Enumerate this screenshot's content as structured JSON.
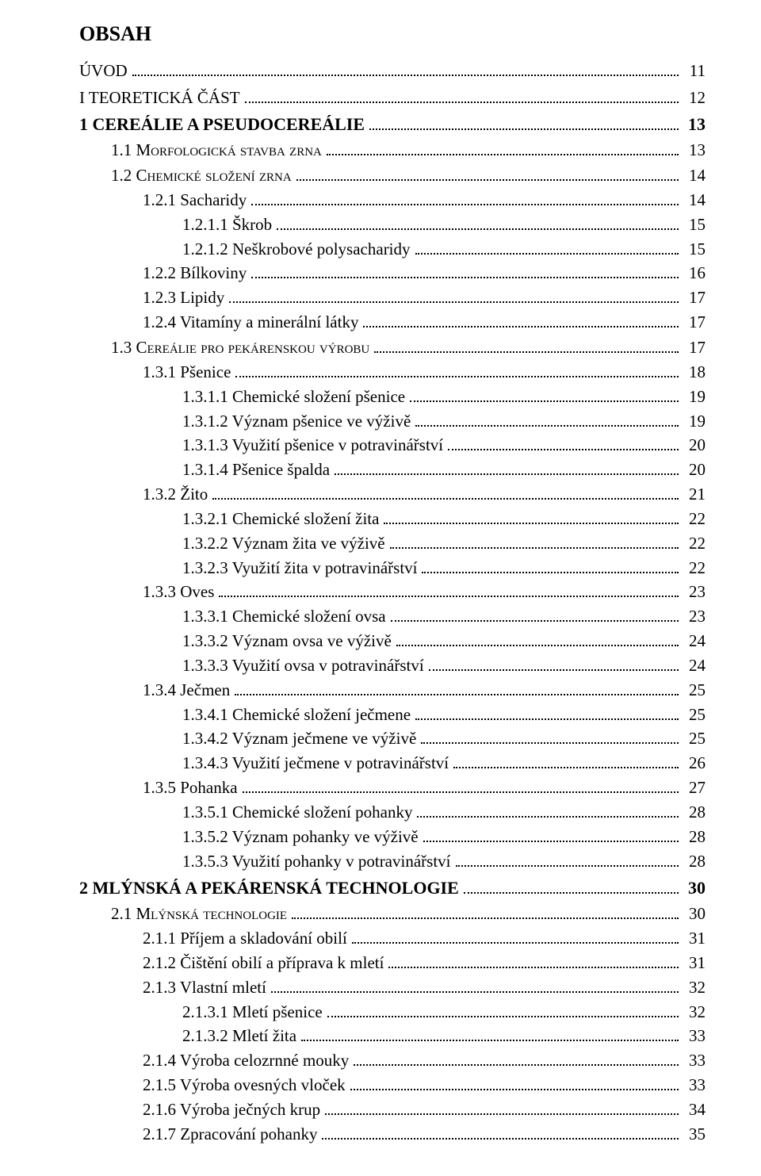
{
  "title": "OBSAH",
  "entries": [
    {
      "cls": "lvl-uvod",
      "label": "ÚVOD",
      "page": "11",
      "bold": false,
      "sc": false
    },
    {
      "cls": "lvl-roman",
      "label": "I   TEORETICKÁ ČÁST",
      "page": "12",
      "bold": false,
      "sc": false
    },
    {
      "cls": "lvl-chapter",
      "label": "1   CEREÁLIE A PSEUDOCEREÁLIE",
      "page": "13",
      "bold": true,
      "sc": false
    },
    {
      "cls": "lvl-sec",
      "label": "1.1   Morfologická stavba zrna",
      "page": "13",
      "bold": false,
      "sc": true
    },
    {
      "cls": "lvl-sec",
      "label": "1.2   Chemické složení zrna",
      "page": "14",
      "bold": false,
      "sc": true
    },
    {
      "cls": "lvl-sub",
      "label": "1.2.1   Sacharidy",
      "page": "14",
      "bold": false,
      "sc": false
    },
    {
      "cls": "lvl-subsub",
      "label": "1.2.1.1   Škrob",
      "page": "15",
      "bold": false,
      "sc": false
    },
    {
      "cls": "lvl-subsub",
      "label": "1.2.1.2   Neškrobové polysacharidy",
      "page": "15",
      "bold": false,
      "sc": false
    },
    {
      "cls": "lvl-sub",
      "label": "1.2.2   Bílkoviny",
      "page": "16",
      "bold": false,
      "sc": false
    },
    {
      "cls": "lvl-sub",
      "label": "1.2.3   Lipidy",
      "page": "17",
      "bold": false,
      "sc": false
    },
    {
      "cls": "lvl-sub",
      "label": "1.2.4   Vitamíny a minerální látky",
      "page": "17",
      "bold": false,
      "sc": false
    },
    {
      "cls": "lvl-sec",
      "label": "1.3   Cereálie pro pekárenskou výrobu",
      "page": "17",
      "bold": false,
      "sc": true
    },
    {
      "cls": "lvl-sub",
      "label": "1.3.1   Pšenice",
      "page": "18",
      "bold": false,
      "sc": false
    },
    {
      "cls": "lvl-subsub",
      "label": "1.3.1.1   Chemické složení pšenice",
      "page": "19",
      "bold": false,
      "sc": false
    },
    {
      "cls": "lvl-subsub",
      "label": "1.3.1.2   Význam pšenice ve výživě",
      "page": "19",
      "bold": false,
      "sc": false
    },
    {
      "cls": "lvl-subsub",
      "label": "1.3.1.3   Využití pšenice v potravinářství",
      "page": "20",
      "bold": false,
      "sc": false
    },
    {
      "cls": "lvl-subsub",
      "label": "1.3.1.4   Pšenice špalda",
      "page": "20",
      "bold": false,
      "sc": false
    },
    {
      "cls": "lvl-sub",
      "label": "1.3.2   Žito",
      "page": "21",
      "bold": false,
      "sc": false
    },
    {
      "cls": "lvl-subsub",
      "label": "1.3.2.1   Chemické složení žita",
      "page": "22",
      "bold": false,
      "sc": false
    },
    {
      "cls": "lvl-subsub",
      "label": "1.3.2.2   Význam žita ve výživě",
      "page": "22",
      "bold": false,
      "sc": false
    },
    {
      "cls": "lvl-subsub",
      "label": "1.3.2.3   Využití žita v potravinářství",
      "page": "22",
      "bold": false,
      "sc": false
    },
    {
      "cls": "lvl-sub",
      "label": "1.3.3   Oves",
      "page": "23",
      "bold": false,
      "sc": false
    },
    {
      "cls": "lvl-subsub",
      "label": "1.3.3.1   Chemické složení ovsa",
      "page": "23",
      "bold": false,
      "sc": false
    },
    {
      "cls": "lvl-subsub",
      "label": "1.3.3.2   Význam ovsa ve výživě",
      "page": "24",
      "bold": false,
      "sc": false
    },
    {
      "cls": "lvl-subsub",
      "label": "1.3.3.3   Využití ovsa v potravinářství",
      "page": "24",
      "bold": false,
      "sc": false
    },
    {
      "cls": "lvl-sub",
      "label": "1.3.4   Ječmen",
      "page": "25",
      "bold": false,
      "sc": false
    },
    {
      "cls": "lvl-subsub",
      "label": "1.3.4.1   Chemické složení ječmene",
      "page": "25",
      "bold": false,
      "sc": false
    },
    {
      "cls": "lvl-subsub",
      "label": "1.3.4.2   Význam ječmene ve výživě",
      "page": "25",
      "bold": false,
      "sc": false
    },
    {
      "cls": "lvl-subsub",
      "label": "1.3.4.3   Využití ječmene v potravinářství",
      "page": "26",
      "bold": false,
      "sc": false
    },
    {
      "cls": "lvl-sub",
      "label": "1.3.5   Pohanka",
      "page": "27",
      "bold": false,
      "sc": false
    },
    {
      "cls": "lvl-subsub",
      "label": "1.3.5.1   Chemické složení pohanky",
      "page": "28",
      "bold": false,
      "sc": false
    },
    {
      "cls": "lvl-subsub",
      "label": "1.3.5.2   Význam pohanky ve výživě",
      "page": "28",
      "bold": false,
      "sc": false
    },
    {
      "cls": "lvl-subsub",
      "label": "1.3.5.3   Využití pohanky v potravinářství",
      "page": "28",
      "bold": false,
      "sc": false
    },
    {
      "cls": "lvl-chapter",
      "label": "2   MLÝNSKÁ A PEKÁRENSKÁ TECHNOLOGIE",
      "page": "30",
      "bold": true,
      "sc": false
    },
    {
      "cls": "lvl-sec",
      "label": "2.1   Mlýnská technologie",
      "page": "30",
      "bold": false,
      "sc": true
    },
    {
      "cls": "lvl-sub",
      "label": "2.1.1   Příjem a skladování obilí",
      "page": "31",
      "bold": false,
      "sc": false
    },
    {
      "cls": "lvl-sub",
      "label": "2.1.2   Čištění obilí a příprava k mletí",
      "page": "31",
      "bold": false,
      "sc": false
    },
    {
      "cls": "lvl-sub",
      "label": "2.1.3   Vlastní mletí",
      "page": "32",
      "bold": false,
      "sc": false
    },
    {
      "cls": "lvl-subsub",
      "label": "2.1.3.1   Mletí pšenice",
      "page": "32",
      "bold": false,
      "sc": false
    },
    {
      "cls": "lvl-subsub",
      "label": "2.1.3.2   Mletí žita",
      "page": "33",
      "bold": false,
      "sc": false
    },
    {
      "cls": "lvl-sub",
      "label": "2.1.4   Výroba celozrnné mouky",
      "page": "33",
      "bold": false,
      "sc": false
    },
    {
      "cls": "lvl-sub",
      "label": "2.1.5   Výroba ovesných vloček",
      "page": "33",
      "bold": false,
      "sc": false
    },
    {
      "cls": "lvl-sub",
      "label": "2.1.6   Výroba ječných krup",
      "page": "34",
      "bold": false,
      "sc": false
    },
    {
      "cls": "lvl-sub",
      "label": "2.1.7   Zpracování pohanky",
      "page": "35",
      "bold": false,
      "sc": false
    }
  ]
}
